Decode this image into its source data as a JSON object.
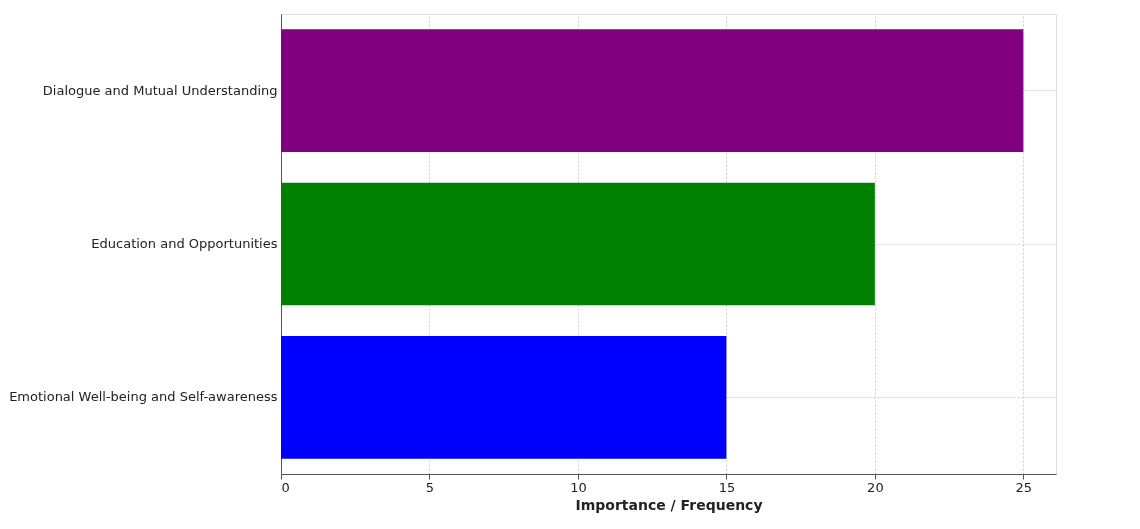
{
  "chart_data": {
    "type": "bar",
    "orientation": "horizontal",
    "xlabel": "Importance / Frequency",
    "categories": [
      "Dialogue and Mutual Understanding",
      "Education and Opportunities",
      "Emotional Well-being and Self-awareness"
    ],
    "values": [
      25,
      20,
      15
    ],
    "colors": [
      "#800080",
      "#008000",
      "#0000ff"
    ],
    "xlim": [
      0,
      26.1
    ],
    "xticks": [
      0,
      5,
      10,
      15,
      20,
      25
    ],
    "grid": true
  }
}
